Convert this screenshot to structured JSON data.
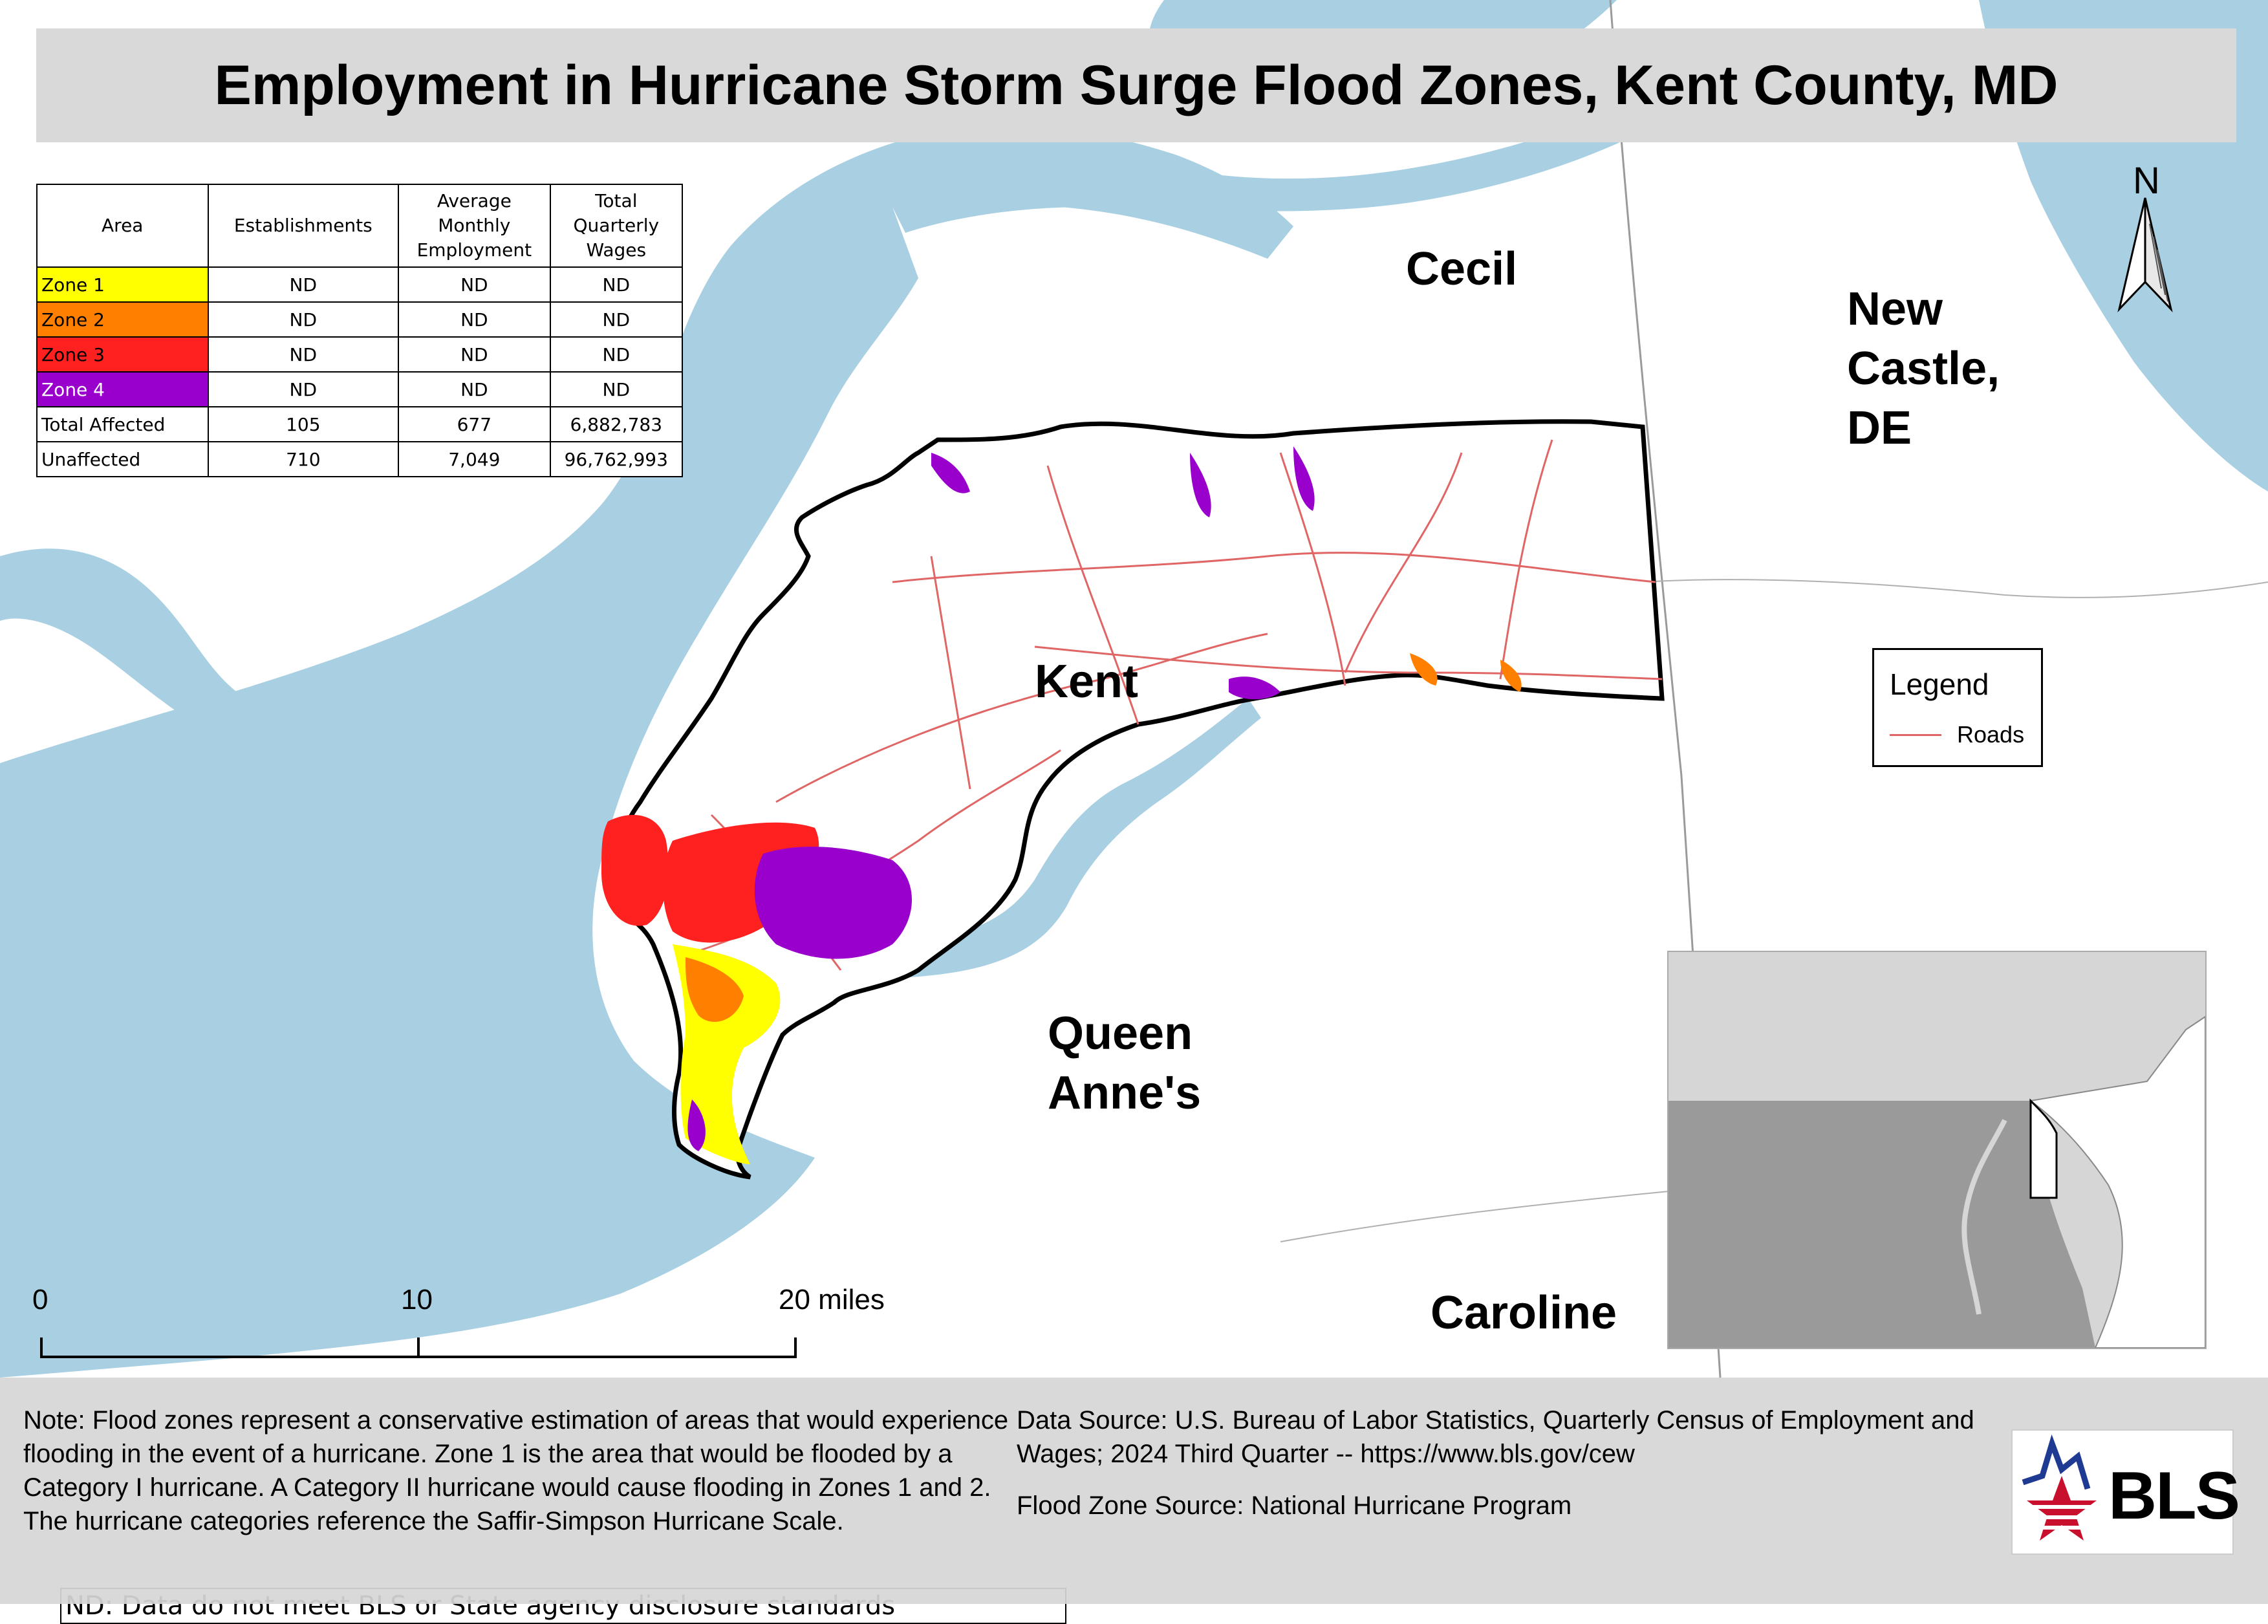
{
  "title": "Employment in Hurricane Storm Surge Flood Zones, Kent County, MD",
  "table": {
    "headers": [
      "Area",
      "Establishments",
      "Average Monthly Employment",
      "Total Quarterly Wages"
    ],
    "rows": [
      {
        "area": "Zone 1",
        "establishments": "ND",
        "employment": "ND",
        "wages": "ND",
        "color": "#ffff00"
      },
      {
        "area": "Zone 2",
        "establishments": "ND",
        "employment": "ND",
        "wages": "ND",
        "color": "#ff8000"
      },
      {
        "area": "Zone 3",
        "establishments": "ND",
        "employment": "ND",
        "wages": "ND",
        "color": "#ff2020"
      },
      {
        "area": "Zone 4",
        "establishments": "ND",
        "employment": "ND",
        "wages": "ND",
        "color": "#9900cc"
      },
      {
        "area": "Total Affected",
        "establishments": "105",
        "employment": "677",
        "wages": "6,882,783"
      },
      {
        "area": "Unaffected",
        "establishments": "710",
        "employment": "7,049",
        "wages": "96,762,993"
      }
    ],
    "note": "ND: Data do not meet BLS or State agency disclosure standards"
  },
  "counties": {
    "cecil": "Cecil",
    "new_castle": [
      "New",
      "Castle,",
      "DE"
    ],
    "kent": "Kent",
    "queen_annes": [
      "Queen",
      "Anne's"
    ],
    "caroline": "Caroline"
  },
  "legend": {
    "title": "Legend",
    "roads_label": "Roads",
    "roads_color": "#e06666"
  },
  "north_arrow": "N",
  "scale_bar": {
    "labels": [
      "0",
      "10",
      "20 miles"
    ]
  },
  "footer": {
    "note": "Note: Flood zones represent a conservative estimation of areas that would experience flooding in the event of a hurricane. Zone 1 is the area that would be flooded by a Category I hurricane. A Category II hurricane would cause flooding in Zones 1 and 2. The hurricane categories reference the Saffir-Simpson Hurricane Scale.",
    "data_source": "Data Source: U.S. Bureau of Labor Statistics, Quarterly Census of Employment and Wages; 2024 Third Quarter -- https://www.bls.gov/cew",
    "flood_source": "Flood Zone Source: National Hurricane Program"
  },
  "logo": {
    "text": "BLS"
  },
  "colors": {
    "water": "#a8cfe2",
    "land": "#ffffff",
    "boundary": "#000000",
    "zone1": "#ffff00",
    "zone2": "#ff8000",
    "zone3": "#ff2020",
    "zone4": "#9900cc"
  }
}
